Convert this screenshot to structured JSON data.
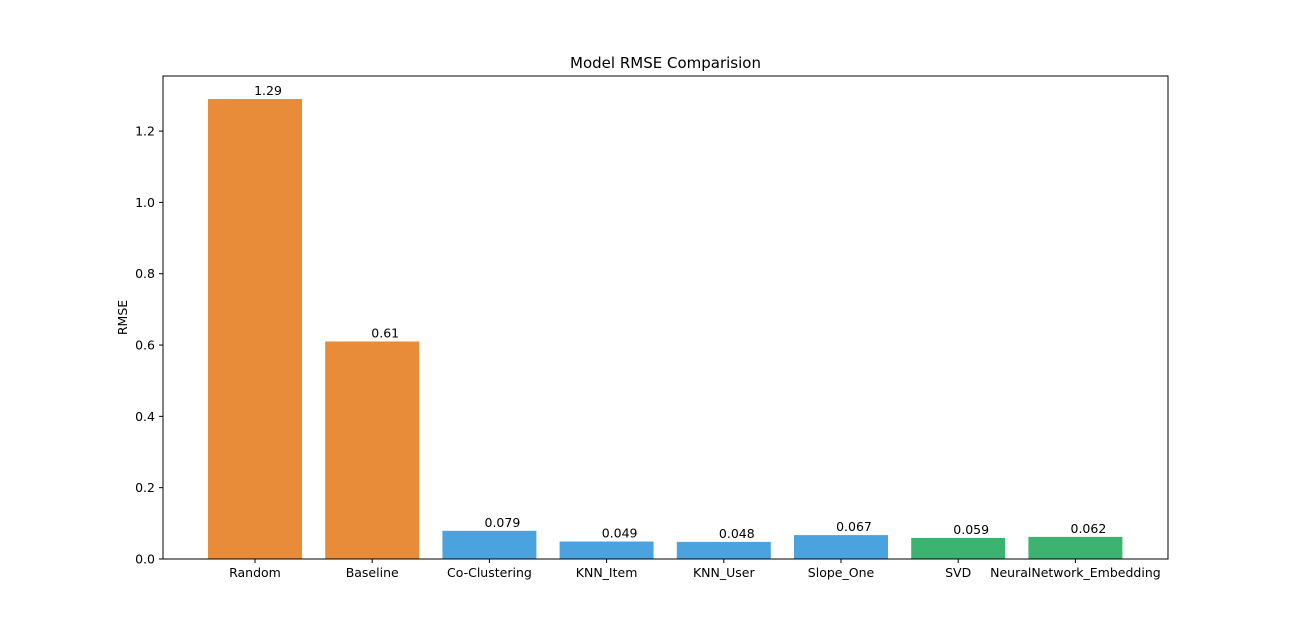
{
  "chart_data": {
    "type": "bar",
    "title": "Model RMSE Comparision",
    "xlabel": "",
    "ylabel": "RMSE",
    "ylim": [
      0,
      1.3545
    ],
    "yticks": [
      0.0,
      0.2,
      0.4,
      0.6,
      0.8,
      1.0,
      1.2
    ],
    "ytick_labels": [
      "0.0",
      "0.2",
      "0.4",
      "0.6",
      "0.8",
      "1.0",
      "1.2"
    ],
    "grid": false,
    "categories": [
      "Random",
      "Baseline",
      "Co-Clustering",
      "KNN_Item",
      "KNN_User",
      "Slope_One",
      "SVD",
      "NeuralNetwork_Embedding"
    ],
    "values": [
      1.29,
      0.61,
      0.079,
      0.049,
      0.048,
      0.067,
      0.059,
      0.062
    ],
    "value_labels": [
      "1.29",
      "0.61",
      "0.079",
      "0.049",
      "0.048",
      "0.067",
      "0.059",
      "0.062"
    ],
    "colors": [
      "#e88c3a",
      "#e88c3a",
      "#4aa3df",
      "#4aa3df",
      "#4aa3df",
      "#4aa3df",
      "#3cb371",
      "#3cb371"
    ]
  }
}
